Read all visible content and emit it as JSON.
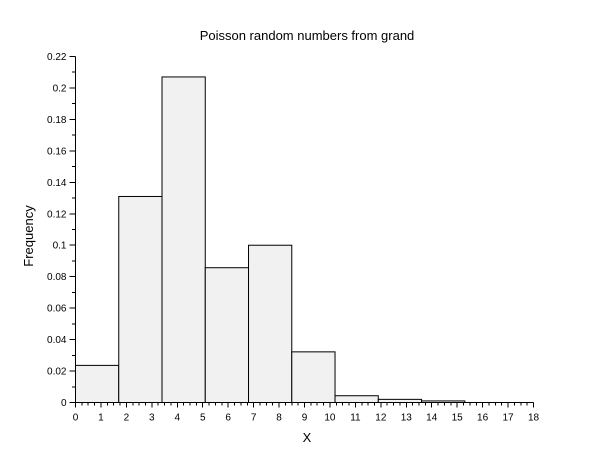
{
  "chart_data": {
    "type": "bar",
    "subtype": "histogram",
    "title": "Poisson random numbers from grand",
    "xlabel": "X",
    "ylabel": "Frequency",
    "xlim": [
      0,
      18
    ],
    "ylim": [
      0,
      0.22
    ],
    "grid": false,
    "legend": null,
    "bin_width": 1.7,
    "bin_edges": [
      0,
      1.7,
      3.4,
      5.1,
      6.8,
      8.5,
      10.2,
      11.9,
      13.6,
      15.3
    ],
    "frequencies": [
      0.0236,
      0.131,
      0.207,
      0.0857,
      0.1,
      0.0322,
      0.0043,
      0.002,
      0.001
    ],
    "x_major_tick_step": 1,
    "x_minor_tick_step": 0.25,
    "y_major_tick_step": 0.02,
    "y_minor_tick_step": 0.01,
    "x_tick_labels": [
      "0",
      "1",
      "2",
      "3",
      "4",
      "5",
      "6",
      "7",
      "8",
      "9",
      "10",
      "11",
      "12",
      "13",
      "14",
      "15",
      "16",
      "17",
      "18"
    ],
    "y_tick_labels": [
      "0",
      "0.02",
      "0.04",
      "0.06",
      "0.08",
      "0.1",
      "0.12",
      "0.14",
      "0.16",
      "0.18",
      "0.2",
      "0.22"
    ],
    "colors": {
      "bar_fill": "#f1f1f1",
      "bar_stroke": "#000000",
      "axis": "#000000",
      "text": "#000000",
      "background": "#ffffff"
    }
  }
}
